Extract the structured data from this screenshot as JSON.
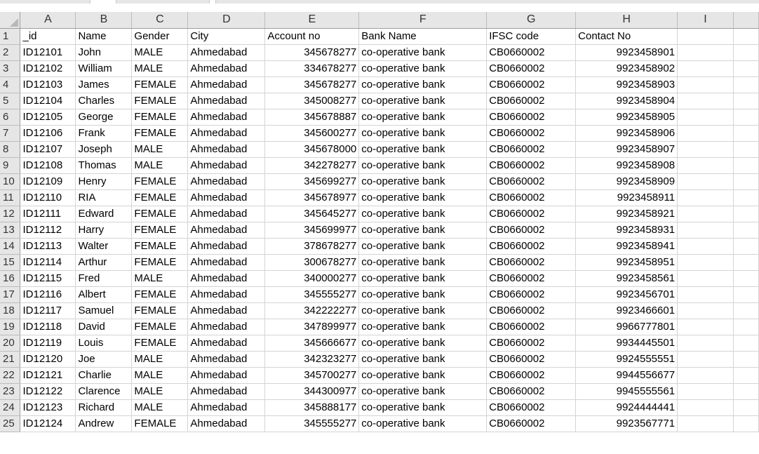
{
  "columns": [
    "A",
    "B",
    "C",
    "D",
    "E",
    "F",
    "G",
    "H",
    "I"
  ],
  "headers": [
    "_id",
    "Name",
    "Gender",
    "City",
    "Account no",
    "Bank Name",
    "IFSC code",
    "Contact No",
    ""
  ],
  "rows": [
    [
      "ID12101",
      "John",
      "MALE",
      "Ahmedabad",
      "345678277",
      "co-operative bank",
      "CB0660002",
      "9923458901",
      ""
    ],
    [
      "ID12102",
      "William",
      "MALE",
      "Ahmedabad",
      "334678277",
      "co-operative bank",
      "CB0660002",
      "9923458902",
      ""
    ],
    [
      "ID12103",
      "James",
      "FEMALE",
      "Ahmedabad",
      "345678277",
      "co-operative bank",
      "CB0660002",
      "9923458903",
      ""
    ],
    [
      "ID12104",
      "Charles",
      "FEMALE",
      "Ahmedabad",
      "345008277",
      "co-operative bank",
      "CB0660002",
      "9923458904",
      ""
    ],
    [
      "ID12105",
      "George",
      "FEMALE",
      "Ahmedabad",
      "345678887",
      "co-operative bank",
      "CB0660002",
      "9923458905",
      ""
    ],
    [
      "ID12106",
      "Frank",
      "FEMALE",
      "Ahmedabad",
      "345600277",
      "co-operative bank",
      "CB0660002",
      "9923458906",
      ""
    ],
    [
      "ID12107",
      "Joseph",
      "MALE",
      "Ahmedabad",
      "345678000",
      "co-operative bank",
      "CB0660002",
      "9923458907",
      ""
    ],
    [
      "ID12108",
      "Thomas",
      "MALE",
      "Ahmedabad",
      "342278277",
      "co-operative bank",
      "CB0660002",
      "9923458908",
      ""
    ],
    [
      "ID12109",
      "Henry",
      "FEMALE",
      "Ahmedabad",
      "345699277",
      "co-operative bank",
      "CB0660002",
      "9923458909",
      ""
    ],
    [
      "ID12110",
      "RIA",
      "FEMALE",
      "Ahmedabad",
      "345678977",
      "co-operative bank",
      "CB0660002",
      "9923458911",
      ""
    ],
    [
      "ID12111",
      "Edward",
      "FEMALE",
      "Ahmedabad",
      "345645277",
      "co-operative bank",
      "CB0660002",
      "9923458921",
      ""
    ],
    [
      "ID12112",
      "Harry",
      "FEMALE",
      "Ahmedabad",
      "345699977",
      "co-operative bank",
      "CB0660002",
      "9923458931",
      ""
    ],
    [
      "ID12113",
      "Walter",
      "FEMALE",
      "Ahmedabad",
      "378678277",
      "co-operative bank",
      "CB0660002",
      "9923458941",
      ""
    ],
    [
      "ID12114",
      "Arthur",
      "FEMALE",
      "Ahmedabad",
      "300678277",
      "co-operative bank",
      "CB0660002",
      "9923458951",
      ""
    ],
    [
      "ID12115",
      "Fred",
      "MALE",
      "Ahmedabad",
      "340000277",
      "co-operative bank",
      "CB0660002",
      "9923458561",
      ""
    ],
    [
      "ID12116",
      "Albert",
      "FEMALE",
      "Ahmedabad",
      "345555277",
      "co-operative bank",
      "CB0660002",
      "9923456701",
      ""
    ],
    [
      "ID12117",
      "Samuel",
      "FEMALE",
      "Ahmedabad",
      "342222277",
      "co-operative bank",
      "CB0660002",
      "9923466601",
      ""
    ],
    [
      "ID12118",
      "David",
      "FEMALE",
      "Ahmedabad",
      "347899977",
      "co-operative bank",
      "CB0660002",
      "9966777801",
      ""
    ],
    [
      "ID12119",
      "Louis",
      "FEMALE",
      "Ahmedabad",
      "345666677",
      "co-operative bank",
      "CB0660002",
      "9934445501",
      ""
    ],
    [
      "ID12120",
      "Joe",
      "MALE",
      "Ahmedabad",
      "342323277",
      "co-operative bank",
      "CB0660002",
      "9924555551",
      ""
    ],
    [
      "ID12121",
      "Charlie",
      "MALE",
      "Ahmedabad",
      "345700277",
      "co-operative bank",
      "CB0660002",
      "9944556677",
      ""
    ],
    [
      "ID12122",
      "Clarence",
      "MALE",
      "Ahmedabad",
      "344300977",
      "co-operative bank",
      "CB0660002",
      "9945555561",
      ""
    ],
    [
      "ID12123",
      "Richard",
      "MALE",
      "Ahmedabad",
      "345888177",
      "co-operative bank",
      "CB0660002",
      "9924444441",
      ""
    ],
    [
      "ID12124",
      "Andrew",
      "FEMALE",
      "Ahmedabad",
      "345555277",
      "co-operative bank",
      "CB0660002",
      "9923567771",
      ""
    ]
  ],
  "colors": {
    "header_bg": "#e6e6e6",
    "gridline": "#d4d4d4"
  }
}
